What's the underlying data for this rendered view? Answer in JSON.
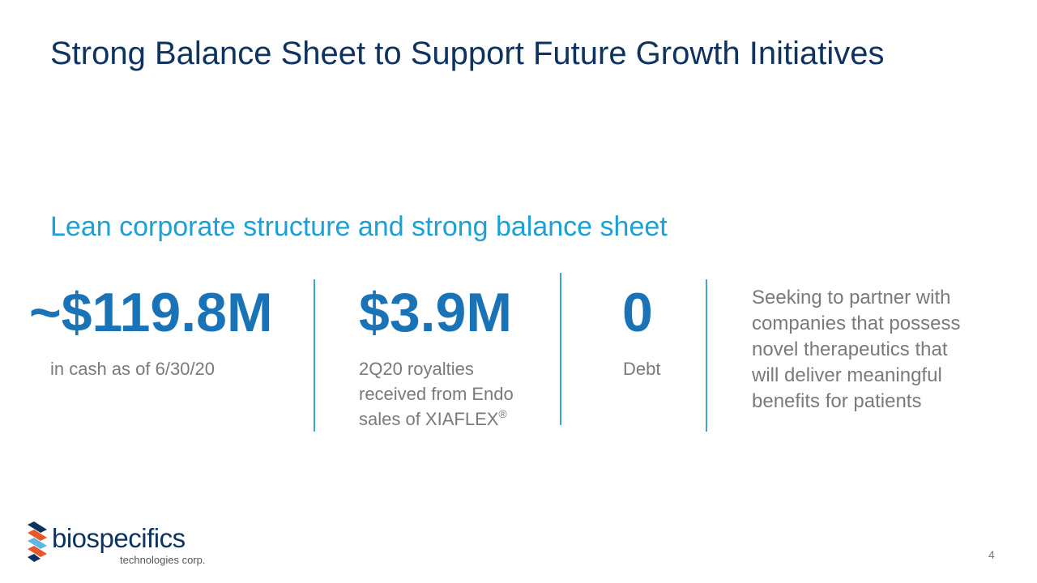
{
  "slide": {
    "title": "Strong Balance Sheet to Support Future Growth Initiatives",
    "subtitle": "Lean corporate structure and strong balance sheet",
    "page_number": "4"
  },
  "stats": [
    {
      "value": "~$119.8M",
      "label_lines": [
        "in cash as of 6/30/20"
      ]
    },
    {
      "value": "$3.9M",
      "label_lines": [
        "2Q20 royalties",
        "received from Endo",
        "sales of XIAFLEX"
      ],
      "label_superscript": "®"
    },
    {
      "value": "0",
      "label_lines": [
        "Debt"
      ]
    }
  ],
  "statement": {
    "lines": [
      "Seeking to partner with",
      "companies that possess",
      "novel therapeutics that",
      "will deliver meaningful",
      "benefits for patients"
    ]
  },
  "logo": {
    "wordmark": "biospecifics",
    "tagline": "technologies corp.",
    "colors": {
      "navy": "#0f3361",
      "orange": "#e8572a",
      "light_blue": "#5bb8e0"
    }
  },
  "colors": {
    "title": "#0f3361",
    "subtitle": "#1aa1d6",
    "stat_value": "#1a73b7",
    "body_text": "#7a7a7a",
    "divider": "#3aa7c8"
  }
}
